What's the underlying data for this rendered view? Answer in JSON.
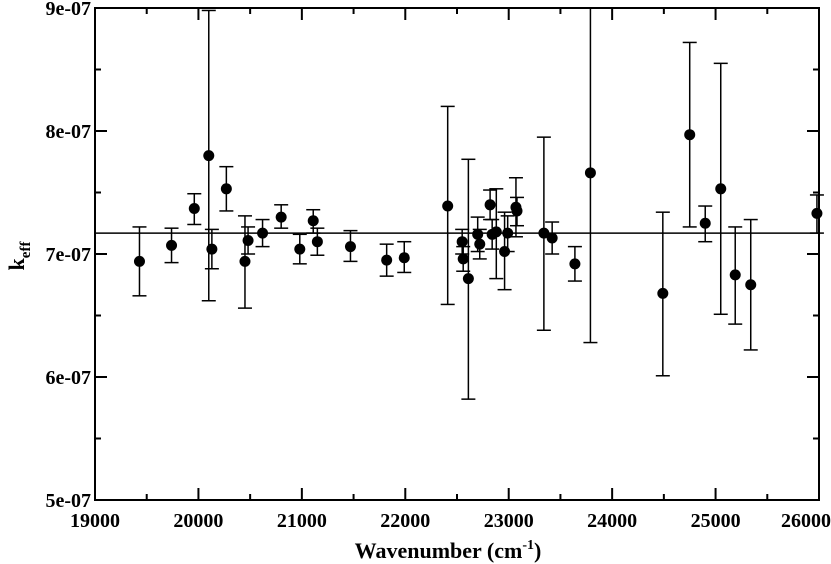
{
  "chart_data": {
    "type": "scatter",
    "title": "",
    "xlabel": "Wavenumber (cm",
    "xlabel_sup": "-1",
    "xlabel_close": ")",
    "ylabel_main": "k",
    "ylabel_sub": "eff",
    "xlim": [
      19000,
      26000
    ],
    "ylim": [
      5e-07,
      9e-07
    ],
    "x_ticks": [
      19000,
      20000,
      21000,
      22000,
      23000,
      24000,
      25000,
      26000
    ],
    "x_tick_labels": [
      "19000",
      "20000",
      "21000",
      "22000",
      "23000",
      "24000",
      "25000",
      "26000"
    ],
    "y_ticks": [
      5e-07,
      6e-07,
      7e-07,
      8e-07,
      9e-07
    ],
    "y_tick_labels": [
      "5e-07",
      "6e-07",
      "7e-07",
      "8e-07",
      "9e-07"
    ],
    "reference_line": 7.17e-07,
    "grid": false,
    "points": [
      {
        "x": 19430,
        "y": 6.94e-07,
        "lo": 6.66e-07,
        "hi": 7.22e-07
      },
      {
        "x": 19740,
        "y": 7.07e-07,
        "lo": 6.93e-07,
        "hi": 7.21e-07
      },
      {
        "x": 19960,
        "y": 7.37e-07,
        "lo": 7.24e-07,
        "hi": 7.49e-07
      },
      {
        "x": 20100,
        "y": 7.8e-07,
        "lo": 6.62e-07,
        "hi": 8.98e-07
      },
      {
        "x": 20130,
        "y": 7.04e-07,
        "lo": 6.88e-07,
        "hi": 7.2e-07
      },
      {
        "x": 20270,
        "y": 7.53e-07,
        "lo": 7.35e-07,
        "hi": 7.71e-07
      },
      {
        "x": 20450,
        "y": 6.94e-07,
        "lo": 6.56e-07,
        "hi": 7.31e-07
      },
      {
        "x": 20480,
        "y": 7.11e-07,
        "lo": 7e-07,
        "hi": 7.22e-07
      },
      {
        "x": 20620,
        "y": 7.17e-07,
        "lo": 7.06e-07,
        "hi": 7.28e-07
      },
      {
        "x": 20800,
        "y": 7.3e-07,
        "lo": 7.21e-07,
        "hi": 7.4e-07
      },
      {
        "x": 20980,
        "y": 7.04e-07,
        "lo": 6.92e-07,
        "hi": 7.16e-07
      },
      {
        "x": 21110,
        "y": 7.27e-07,
        "lo": 7.17e-07,
        "hi": 7.36e-07
      },
      {
        "x": 21150,
        "y": 7.1e-07,
        "lo": 6.99e-07,
        "hi": 7.21e-07
      },
      {
        "x": 21470,
        "y": 7.06e-07,
        "lo": 6.94e-07,
        "hi": 7.19e-07
      },
      {
        "x": 21820,
        "y": 6.95e-07,
        "lo": 6.82e-07,
        "hi": 7.08e-07
      },
      {
        "x": 21990,
        "y": 6.97e-07,
        "lo": 6.85e-07,
        "hi": 7.1e-07
      },
      {
        "x": 22410,
        "y": 7.39e-07,
        "lo": 6.59e-07,
        "hi": 8.2e-07
      },
      {
        "x": 22550,
        "y": 7.1e-07,
        "lo": 7e-07,
        "hi": 7.2e-07
      },
      {
        "x": 22560,
        "y": 6.96e-07,
        "lo": 6.86e-07,
        "hi": 7.06e-07
      },
      {
        "x": 22610,
        "y": 6.8e-07,
        "lo": 5.82e-07,
        "hi": 7.77e-07
      },
      {
        "x": 22700,
        "y": 7.16e-07,
        "lo": 7.02e-07,
        "hi": 7.3e-07
      },
      {
        "x": 22720,
        "y": 7.08e-07,
        "lo": 6.96e-07,
        "hi": 7.2e-07
      },
      {
        "x": 22820,
        "y": 7.4e-07,
        "lo": 7.28e-07,
        "hi": 7.52e-07
      },
      {
        "x": 22840,
        "y": 7.16e-07,
        "lo": 7.04e-07,
        "hi": 7.28e-07
      },
      {
        "x": 22880,
        "y": 7.18e-07,
        "lo": 6.8e-07,
        "hi": 7.53e-07
      },
      {
        "x": 22960,
        "y": 7.02e-07,
        "lo": 6.71e-07,
        "hi": 7.34e-07
      },
      {
        "x": 22990,
        "y": 7.17e-07,
        "lo": 7.02e-07,
        "hi": 7.31e-07
      },
      {
        "x": 23070,
        "y": 7.38e-07,
        "lo": 7.14e-07,
        "hi": 7.62e-07
      },
      {
        "x": 23080,
        "y": 7.35e-07,
        "lo": 7.23e-07,
        "hi": 7.46e-07
      },
      {
        "x": 23340,
        "y": 7.17e-07,
        "lo": 6.38e-07,
        "hi": 7.95e-07
      },
      {
        "x": 23420,
        "y": 7.13e-07,
        "lo": 7e-07,
        "hi": 7.26e-07
      },
      {
        "x": 23640,
        "y": 6.92e-07,
        "lo": 6.78e-07,
        "hi": 7.06e-07
      },
      {
        "x": 23790,
        "y": 7.66e-07,
        "lo": 6.28e-07,
        "hi": 9e-07
      },
      {
        "x": 24490,
        "y": 6.68e-07,
        "lo": 6.01e-07,
        "hi": 7.34e-07
      },
      {
        "x": 24750,
        "y": 7.97e-07,
        "lo": 7.22e-07,
        "hi": 8.72e-07
      },
      {
        "x": 24900,
        "y": 7.25e-07,
        "lo": 7.1e-07,
        "hi": 7.39e-07
      },
      {
        "x": 25050,
        "y": 7.53e-07,
        "lo": 6.51e-07,
        "hi": 8.55e-07
      },
      {
        "x": 25190,
        "y": 6.83e-07,
        "lo": 6.43e-07,
        "hi": 7.22e-07
      },
      {
        "x": 25340,
        "y": 6.75e-07,
        "lo": 6.22e-07,
        "hi": 7.28e-07
      },
      {
        "x": 25980,
        "y": 7.33e-07,
        "lo": 7.17e-07,
        "hi": 7.48e-07
      }
    ],
    "colors": {
      "marker": "#000000",
      "line": "#000000",
      "background": "#ffffff"
    }
  }
}
